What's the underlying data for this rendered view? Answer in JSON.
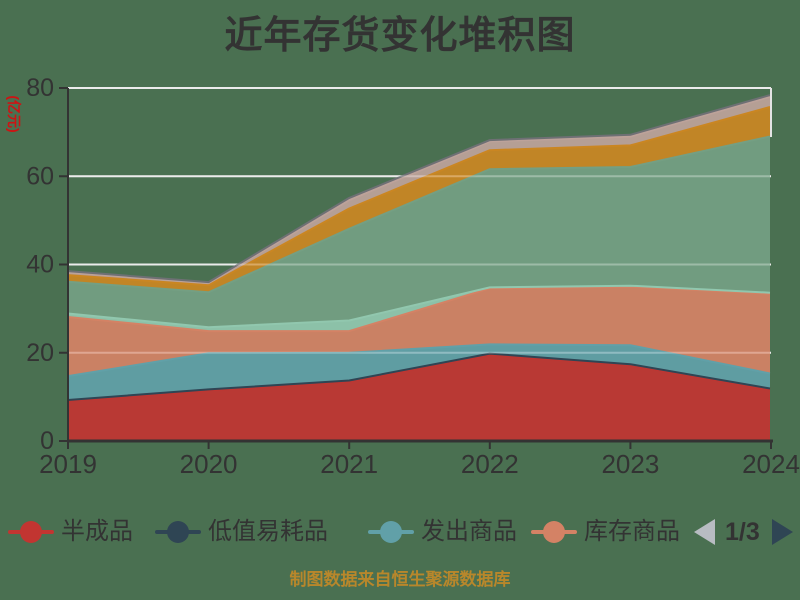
{
  "title": "近年存货变化堆积图",
  "background_color": "#4a7051",
  "text_color": "#333333",
  "footer": "制图数据来自恒生聚源数据库",
  "footer_color": "#b8872b",
  "y_axis": {
    "name": "(亿元)",
    "name_color": "#cc1414",
    "min": 0,
    "max": 80,
    "interval": 20,
    "tick_labels": [
      "0",
      "20",
      "40",
      "60",
      "80"
    ]
  },
  "x_axis": {
    "tick_labels": [
      "2019",
      "2020",
      "2021",
      "2022",
      "2023",
      "2024"
    ]
  },
  "axis_color": "#333333",
  "grid_line_color": "#e4e4e4",
  "chart_data": {
    "type": "area",
    "stacked": true,
    "title": "近年存货变化堆积图",
    "ylabel": "(亿元)",
    "ylim": [
      0,
      80
    ],
    "grid": true,
    "legend_position": "bottom",
    "x": [
      "2019",
      "2020",
      "2021",
      "2022",
      "2023",
      "2024"
    ],
    "series": [
      {
        "name": "半成品",
        "color": "#c23531",
        "values": [
          9.1,
          11.5,
          13.5,
          19.6,
          17.2,
          11.7
        ]
      },
      {
        "name": "低值易耗品",
        "color": "#2f4554",
        "values": [
          0.2,
          0.2,
          0.2,
          0.2,
          0.2,
          0.2
        ]
      },
      {
        "name": "发出商品",
        "color": "#61a0a8",
        "values": [
          5.4,
          8.2,
          6.3,
          2.1,
          4.3,
          3.4
        ]
      },
      {
        "name": "库存商品",
        "color": "#d48265",
        "values": [
          13.4,
          5.0,
          4.9,
          12.7,
          13.3,
          18.1
        ]
      },
      {
        "name": "",
        "color": "#91c7ae",
        "values": [
          0.8,
          0.9,
          2.4,
          0.2,
          0.2,
          0.2
        ]
      },
      {
        "name": "",
        "color": "#749f83",
        "values": [
          7.2,
          7.9,
          20.8,
          26.8,
          26.9,
          35.4
        ]
      },
      {
        "name": "",
        "color": "#ca8622",
        "values": [
          1.5,
          1.6,
          4.6,
          4.3,
          4.9,
          6.7
        ]
      },
      {
        "name": "",
        "color": "#bda29a",
        "values": [
          0.6,
          0.5,
          1.9,
          2.0,
          2.0,
          2.3
        ]
      },
      {
        "name": "",
        "color": "#6e7074",
        "values": [
          0.3,
          0.2,
          0.5,
          0.3,
          0.4,
          0.4
        ]
      }
    ]
  },
  "legend": {
    "items": [
      {
        "label": "半成品",
        "color": "#c23531"
      },
      {
        "label": "低值易耗品",
        "color": "#2f4554"
      },
      {
        "label": "发出商品",
        "color": "#61a0a8"
      },
      {
        "label": "库存商品",
        "color": "#d48265"
      }
    ],
    "pager": {
      "text": "1/3",
      "prev_color": "#b8bcc2",
      "next_color": "#2f4554"
    }
  }
}
